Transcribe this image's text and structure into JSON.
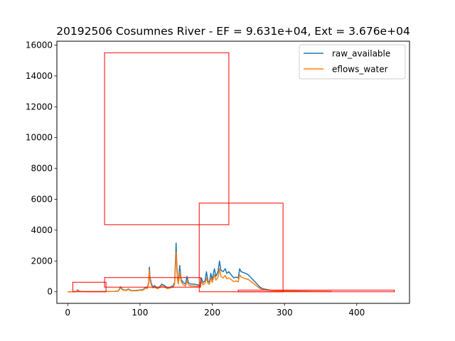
{
  "chart_data": {
    "type": "line",
    "title": "20192506 Cosumnes River - EF = 9.631e+04, Ext = 3.676e+04",
    "xlabel": "",
    "ylabel": "",
    "xlim": [
      -15,
      473
    ],
    "ylim": [
      -750,
      16250
    ],
    "xticks": [
      0,
      100,
      200,
      300,
      400
    ],
    "yticks": [
      0,
      2000,
      4000,
      6000,
      8000,
      10000,
      12000,
      14000,
      16000
    ],
    "grid": false,
    "legend": "top-right",
    "series": [
      {
        "name": "raw_available",
        "color": "#1f77b4",
        "points": [
          [
            0,
            0
          ],
          [
            8,
            10
          ],
          [
            12,
            30
          ],
          [
            14,
            120
          ],
          [
            16,
            40
          ],
          [
            20,
            20
          ],
          [
            30,
            15
          ],
          [
            40,
            15
          ],
          [
            50,
            15
          ],
          [
            55,
            20
          ],
          [
            60,
            25
          ],
          [
            65,
            30
          ],
          [
            70,
            50
          ],
          [
            73,
            320
          ],
          [
            76,
            150
          ],
          [
            80,
            100
          ],
          [
            84,
            180
          ],
          [
            88,
            80
          ],
          [
            95,
            90
          ],
          [
            100,
            110
          ],
          [
            104,
            130
          ],
          [
            108,
            300
          ],
          [
            110,
            250
          ],
          [
            112,
            600
          ],
          [
            113,
            1600
          ],
          [
            114,
            900
          ],
          [
            116,
            500
          ],
          [
            118,
            300
          ],
          [
            120,
            400
          ],
          [
            124,
            250
          ],
          [
            128,
            350
          ],
          [
            130,
            500
          ],
          [
            134,
            400
          ],
          [
            138,
            250
          ],
          [
            142,
            300
          ],
          [
            146,
            400
          ],
          [
            148,
            600
          ],
          [
            150,
            3150
          ],
          [
            151,
            1800
          ],
          [
            152,
            900
          ],
          [
            153,
            600
          ],
          [
            155,
            1700
          ],
          [
            157,
            800
          ],
          [
            160,
            600
          ],
          [
            163,
            500
          ],
          [
            165,
            1000
          ],
          [
            167,
            600
          ],
          [
            170,
            500
          ],
          [
            175,
            500
          ],
          [
            180,
            450
          ],
          [
            183,
            400
          ],
          [
            185,
            900
          ],
          [
            187,
            600
          ],
          [
            190,
            700
          ],
          [
            192,
            1300
          ],
          [
            194,
            700
          ],
          [
            196,
            600
          ],
          [
            198,
            1200
          ],
          [
            200,
            800
          ],
          [
            203,
            1500
          ],
          [
            205,
            1000
          ],
          [
            208,
            1300
          ],
          [
            210,
            2000
          ],
          [
            212,
            1400
          ],
          [
            215,
            1300
          ],
          [
            218,
            1500
          ],
          [
            220,
            1200
          ],
          [
            223,
            1300
          ],
          [
            226,
            1100
          ],
          [
            230,
            900
          ],
          [
            233,
            950
          ],
          [
            236,
            900
          ],
          [
            238,
            1500
          ],
          [
            240,
            1300
          ],
          [
            243,
            1250
          ],
          [
            246,
            1200
          ],
          [
            250,
            1100
          ],
          [
            254,
            900
          ],
          [
            258,
            700
          ],
          [
            262,
            500
          ],
          [
            266,
            300
          ],
          [
            270,
            200
          ],
          [
            275,
            150
          ],
          [
            280,
            100
          ],
          [
            290,
            70
          ],
          [
            300,
            60
          ],
          [
            320,
            40
          ],
          [
            340,
            30
          ],
          [
            365,
            20
          ]
        ]
      },
      {
        "name": "eflows_water",
        "color": "#ff7f0e",
        "points": [
          [
            0,
            0
          ],
          [
            8,
            5
          ],
          [
            12,
            20
          ],
          [
            14,
            80
          ],
          [
            16,
            30
          ],
          [
            20,
            15
          ],
          [
            30,
            10
          ],
          [
            40,
            10
          ],
          [
            50,
            10
          ],
          [
            55,
            15
          ],
          [
            60,
            20
          ],
          [
            65,
            25
          ],
          [
            70,
            40
          ],
          [
            73,
            250
          ],
          [
            76,
            120
          ],
          [
            80,
            80
          ],
          [
            84,
            150
          ],
          [
            88,
            60
          ],
          [
            95,
            70
          ],
          [
            100,
            90
          ],
          [
            104,
            100
          ],
          [
            108,
            250
          ],
          [
            110,
            200
          ],
          [
            112,
            500
          ],
          [
            113,
            1400
          ],
          [
            114,
            700
          ],
          [
            116,
            400
          ],
          [
            118,
            250
          ],
          [
            120,
            300
          ],
          [
            124,
            200
          ],
          [
            128,
            280
          ],
          [
            130,
            400
          ],
          [
            134,
            300
          ],
          [
            138,
            200
          ],
          [
            142,
            250
          ],
          [
            146,
            300
          ],
          [
            148,
            500
          ],
          [
            150,
            2600
          ],
          [
            151,
            1500
          ],
          [
            152,
            750
          ],
          [
            153,
            500
          ],
          [
            155,
            1300
          ],
          [
            157,
            650
          ],
          [
            160,
            450
          ],
          [
            163,
            380
          ],
          [
            165,
            700
          ],
          [
            167,
            450
          ],
          [
            170,
            380
          ],
          [
            175,
            380
          ],
          [
            180,
            350
          ],
          [
            183,
            320
          ],
          [
            185,
            700
          ],
          [
            187,
            450
          ],
          [
            190,
            550
          ],
          [
            192,
            900
          ],
          [
            194,
            550
          ],
          [
            196,
            480
          ],
          [
            198,
            900
          ],
          [
            200,
            600
          ],
          [
            203,
            1100
          ],
          [
            205,
            750
          ],
          [
            208,
            950
          ],
          [
            210,
            1500
          ],
          [
            212,
            1000
          ],
          [
            215,
            900
          ],
          [
            218,
            1050
          ],
          [
            220,
            850
          ],
          [
            223,
            900
          ],
          [
            226,
            800
          ],
          [
            230,
            650
          ],
          [
            233,
            700
          ],
          [
            236,
            650
          ],
          [
            238,
            1100
          ],
          [
            240,
            950
          ],
          [
            243,
            900
          ],
          [
            246,
            850
          ],
          [
            250,
            800
          ],
          [
            254,
            650
          ],
          [
            258,
            500
          ],
          [
            262,
            350
          ],
          [
            266,
            220
          ],
          [
            270,
            150
          ],
          [
            275,
            110
          ],
          [
            280,
            80
          ],
          [
            290,
            55
          ],
          [
            300,
            45
          ],
          [
            320,
            30
          ],
          [
            340,
            22
          ],
          [
            365,
            15
          ]
        ]
      }
    ],
    "boxes": [
      {
        "color": "#ff0000",
        "x": [
          7,
          53
        ],
        "y": [
          0,
          620
        ]
      },
      {
        "color": "#ff0000",
        "x": [
          51,
          223
        ],
        "y": [
          4350,
          15500
        ]
      },
      {
        "color": "#ff0000",
        "x": [
          51,
          184
        ],
        "y": [
          300,
          920
        ]
      },
      {
        "color": "#ff0000",
        "x": [
          182,
          298
        ],
        "y": [
          0,
          5750
        ]
      },
      {
        "color": "#ff0000",
        "x": [
          236,
          452
        ],
        "y": [
          0,
          110
        ]
      }
    ]
  }
}
